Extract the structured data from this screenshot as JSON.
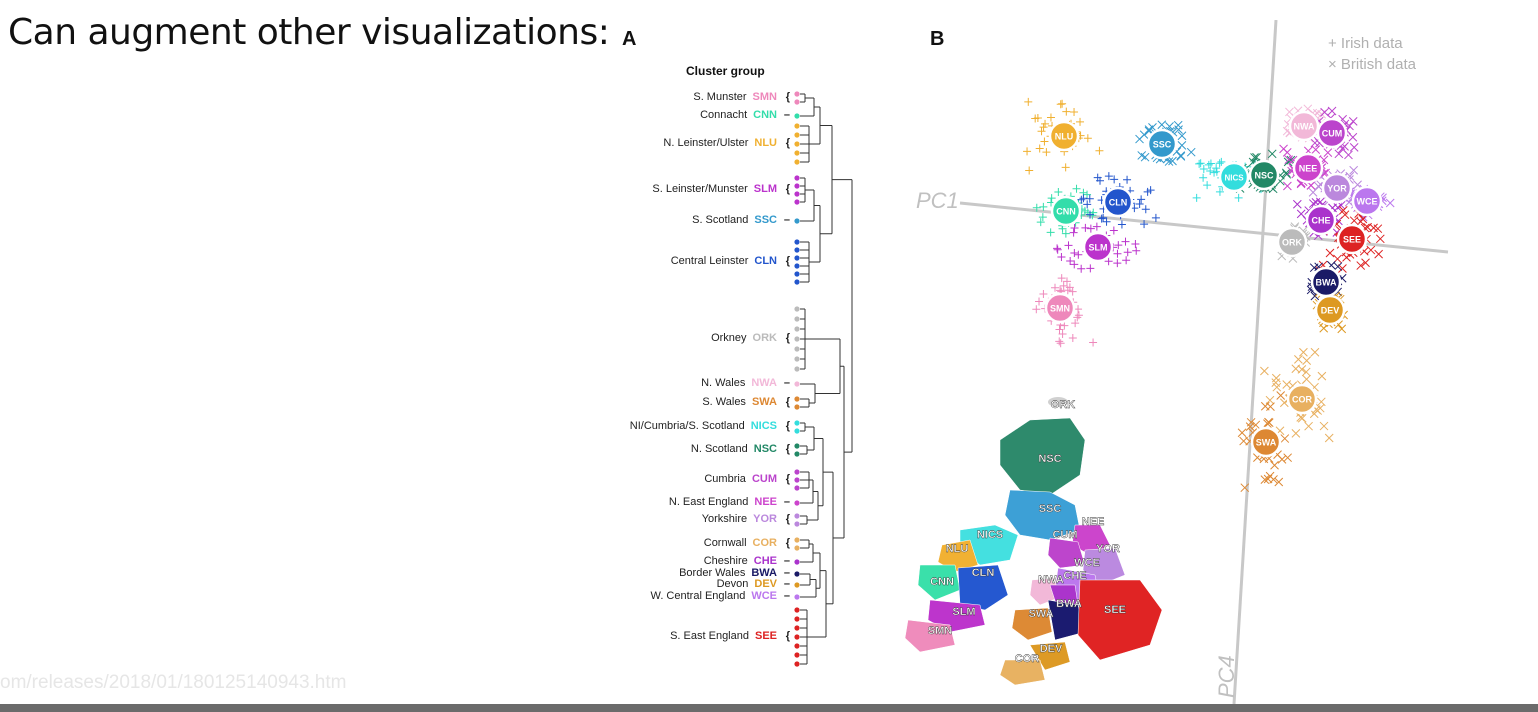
{
  "slide": {
    "title": "Can augment other visualizations:",
    "footer_url": "om/releases/2018/01/180125140943.htm"
  },
  "panel_a": {
    "letter": "A",
    "heading": "Cluster group",
    "groups": [
      {
        "name": "S. Munster",
        "code": "SMN",
        "color": "#ee88bb",
        "bracket": "{"
      },
      {
        "name": "Connacht",
        "code": "CNN",
        "color": "#33ddaa",
        "bracket": "–"
      },
      {
        "name": "N. Leinster/Ulster",
        "code": "NLU",
        "color": "#f0b030",
        "bracket": "{"
      },
      {
        "name": "S. Leinster/Munster",
        "code": "SLM",
        "color": "#bb33cc",
        "bracket": "{"
      },
      {
        "name": "S. Scotland",
        "code": "SSC",
        "color": "#3399cc",
        "bracket": "–"
      },
      {
        "name": "Central Leinster",
        "code": "CLN",
        "color": "#2255cc",
        "bracket": "{"
      },
      {
        "name": "Orkney",
        "code": "ORK",
        "color": "#bbbbbb",
        "bracket": "{"
      },
      {
        "name": "N. Wales",
        "code": "NWA",
        "color": "#f2b8d8",
        "bracket": "–"
      },
      {
        "name": "S. Wales",
        "code": "SWA",
        "color": "#dd8833",
        "bracket": "{"
      },
      {
        "name": "NI/Cumbria/S. Scotland",
        "code": "NICS",
        "color": "#33dddd",
        "bracket": "{"
      },
      {
        "name": "N. Scotland",
        "code": "NSC",
        "color": "#228866",
        "bracket": "{"
      },
      {
        "name": "Cumbria",
        "code": "CUM",
        "color": "#bb44cc",
        "bracket": "{"
      },
      {
        "name": "N. East England",
        "code": "NEE",
        "color": "#cc44cc",
        "bracket": "–"
      },
      {
        "name": "Yorkshire",
        "code": "YOR",
        "color": "#bb88dd",
        "bracket": "{"
      },
      {
        "name": "Cornwall",
        "code": "COR",
        "color": "#e8b060",
        "bracket": "{"
      },
      {
        "name": "Cheshire",
        "code": "CHE",
        "color": "#aa33cc",
        "bracket": "–"
      },
      {
        "name": "Border Wales",
        "code": "BWA",
        "color": "#1a1a66",
        "bracket": "–"
      },
      {
        "name": "Devon",
        "code": "DEV",
        "color": "#dd9922",
        "bracket": "–"
      },
      {
        "name": "W. Central England",
        "code": "WCE",
        "color": "#bb77ee",
        "bracket": "–"
      },
      {
        "name": "S. East England",
        "code": "SEE",
        "color": "#dd2222",
        "bracket": "{"
      }
    ]
  },
  "panel_b": {
    "letter": "B",
    "axis_pc1": "PC1",
    "axis_pc4": "PC4",
    "legend": [
      {
        "symbol": "+",
        "label": "Irish data"
      },
      {
        "symbol": "×",
        "label": "British data"
      }
    ],
    "clusters": [
      {
        "code": "NLU",
        "color": "#f0b030"
      },
      {
        "code": "SSC",
        "color": "#3399cc"
      },
      {
        "code": "NICS",
        "color": "#33dddd"
      },
      {
        "code": "NSC",
        "color": "#228866"
      },
      {
        "code": "NWA",
        "color": "#f2b8d8"
      },
      {
        "code": "CUM",
        "color": "#bb44cc"
      },
      {
        "code": "NEE",
        "color": "#cc44cc"
      },
      {
        "code": "YOR",
        "color": "#bb88dd"
      },
      {
        "code": "WCE",
        "color": "#bb77ee"
      },
      {
        "code": "CNN",
        "color": "#33ddaa"
      },
      {
        "code": "CLN",
        "color": "#2255cc"
      },
      {
        "code": "CHE",
        "color": "#aa33cc"
      },
      {
        "code": "SEE",
        "color": "#dd2222"
      },
      {
        "code": "ORK",
        "color": "#bbbbbb"
      },
      {
        "code": "SLM",
        "color": "#bb33cc"
      },
      {
        "code": "BWA",
        "color": "#1a1a66"
      },
      {
        "code": "DEV",
        "color": "#dd9922"
      },
      {
        "code": "SMN",
        "color": "#ee88bb"
      },
      {
        "code": "COR",
        "color": "#e8b060"
      },
      {
        "code": "SWA",
        "color": "#dd8833"
      }
    ],
    "map_labels": [
      "ORK",
      "NSC",
      "SSC",
      "NICS",
      "NLU",
      "CNN",
      "CLN",
      "SLM",
      "SMN",
      "NEE",
      "CUM",
      "YOR",
      "WCE",
      "NWA",
      "CHE",
      "SWA",
      "BWA",
      "SEE",
      "DEV",
      "COR"
    ]
  }
}
